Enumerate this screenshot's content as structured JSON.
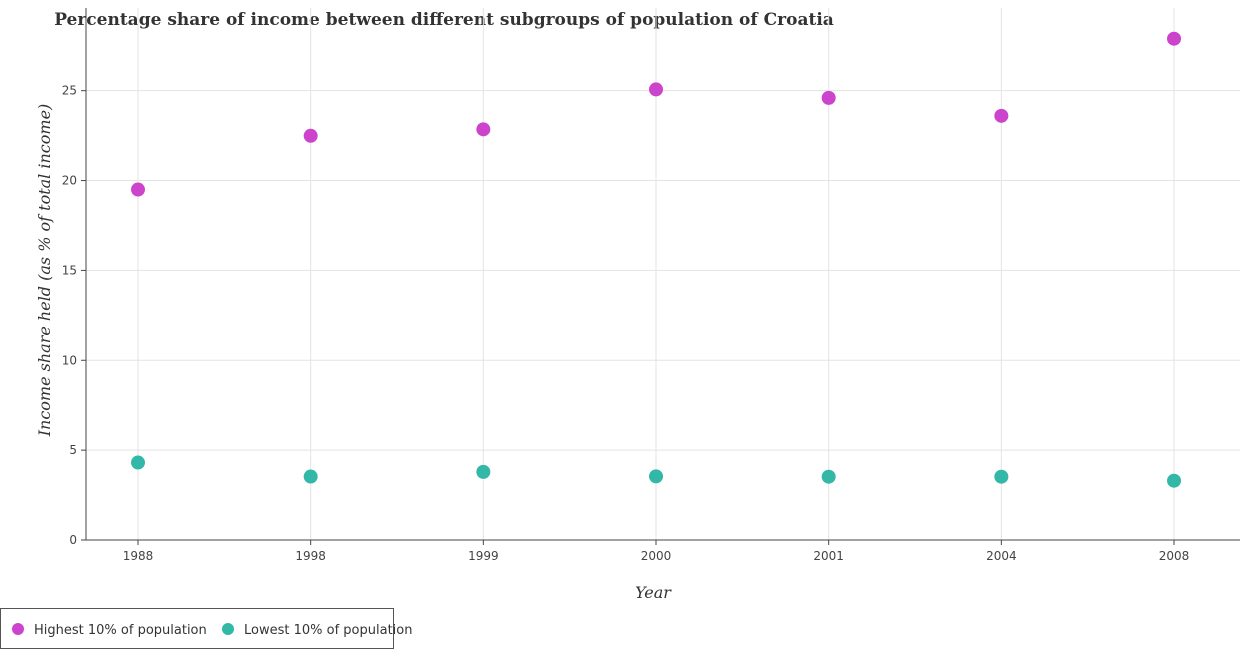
{
  "chart_data": {
    "type": "scatter",
    "title": "Percentage share of income between different subgroups of population of Croatia",
    "xlabel": "Year",
    "ylabel": "Income share held (as % of total income)",
    "categories": [
      "1988",
      "1998",
      "1999",
      "2000",
      "2001",
      "2004",
      "2008"
    ],
    "ylim": [
      0,
      29.6
    ],
    "yticks": [
      0,
      5,
      10,
      15,
      20,
      25
    ],
    "ytick_labels": [
      "0",
      "5",
      "10",
      "15",
      "20",
      "25"
    ],
    "grid": true,
    "legend_position": "bottom-left",
    "series": [
      {
        "name": "Highest 10% of population",
        "color": "#cc44cc",
        "values": [
          19.5,
          22.49,
          22.85,
          25.07,
          24.6,
          23.6,
          27.89
        ]
      },
      {
        "name": "Lowest 10% of population",
        "color": "#33b8a8",
        "values": [
          4.31,
          3.53,
          3.79,
          3.54,
          3.52,
          3.52,
          3.3
        ]
      }
    ]
  }
}
